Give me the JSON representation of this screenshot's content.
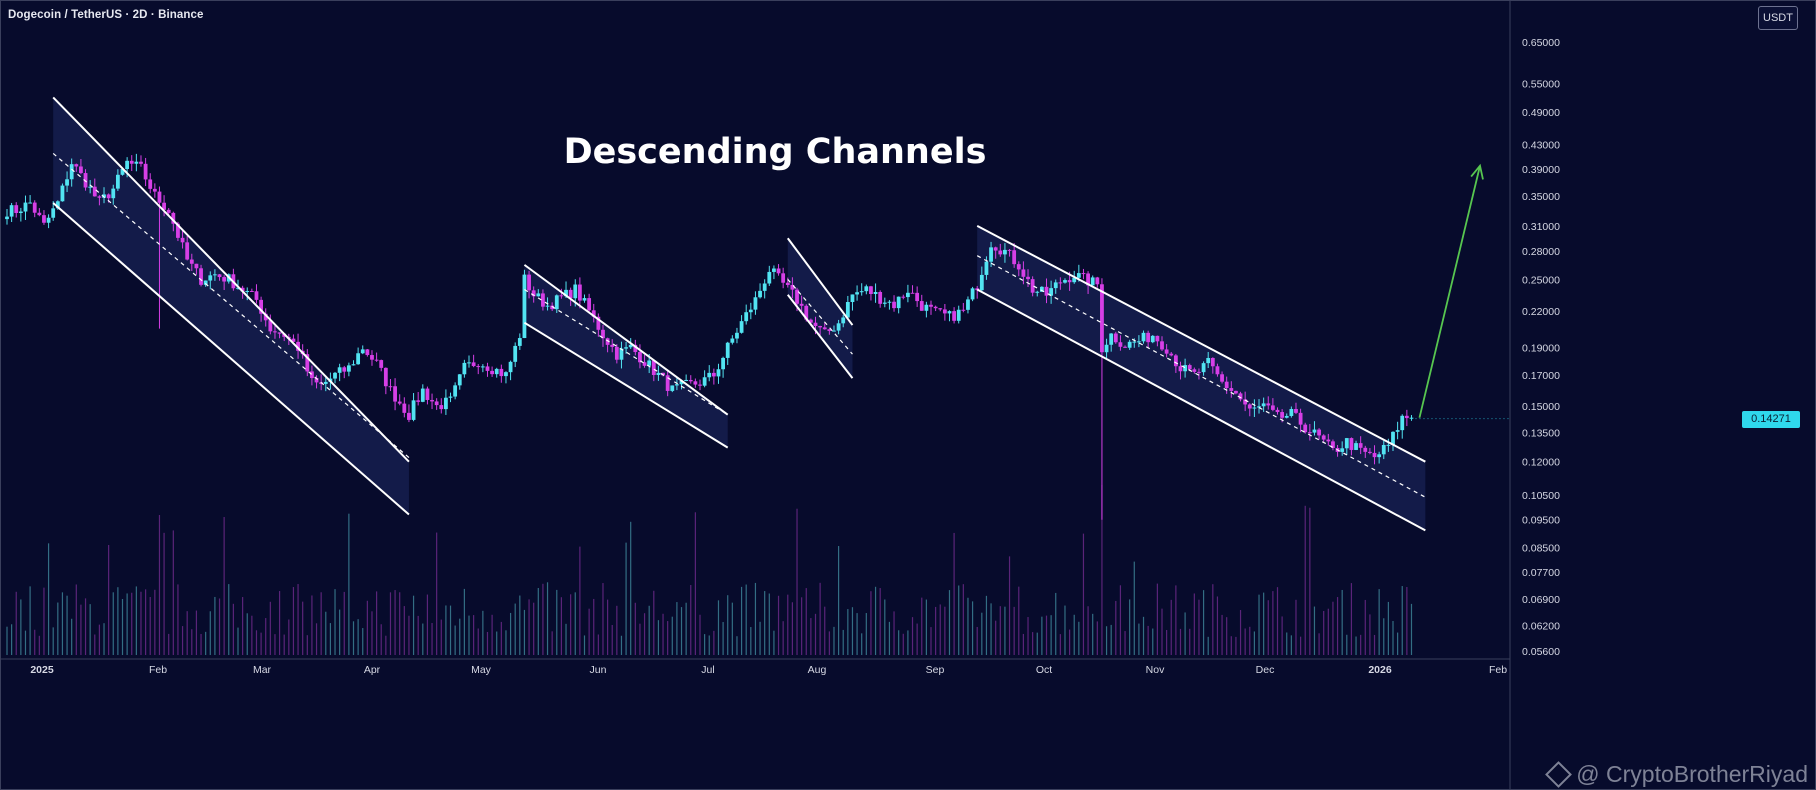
{
  "header": {
    "symbol": "Dogecoin / TetherUS · 2D · Binance"
  },
  "currency_button": "USDT",
  "watermark": {
    "text": "@ CryptoBrotherRiyad"
  },
  "colors": {
    "background": "#070b2c",
    "bull": "#52e4f2",
    "bear": "#d63fe6",
    "channel": "#ffffff",
    "arrow": "#57c650",
    "price_tag": "#2fd8ec"
  },
  "chart_data": {
    "type": "candlestick",
    "title": "Descending Channels",
    "symbol": "DOGE/USDT",
    "timeframe": "2D",
    "exchange": "Binance",
    "y_scale": "log",
    "ylim": [
      0.054,
      0.7
    ],
    "y_ticks": [
      "0.65000",
      "0.55000",
      "0.49000",
      "0.43000",
      "0.39000",
      "0.35000",
      "0.31000",
      "0.28000",
      "0.25000",
      "0.22000",
      "0.19000",
      "0.17000",
      "0.15000",
      "0.13500",
      "0.12000",
      "0.10500",
      "0.09500",
      "0.08500",
      "0.07700",
      "0.06900",
      "0.06200",
      "0.05600"
    ],
    "x_ticks": [
      "2025",
      "Feb",
      "Mar",
      "Apr",
      "May",
      "Jun",
      "Jul",
      "Aug",
      "Sep",
      "Oct",
      "Nov",
      "Dec",
      "2026",
      "Feb"
    ],
    "last_price": "0.14271",
    "series": [
      {
        "kind": "close_path",
        "values": [
          [
            0,
            0.33
          ],
          [
            2,
            0.33
          ],
          [
            5,
            0.34
          ],
          [
            8,
            0.31
          ],
          [
            11,
            0.34
          ],
          [
            14,
            0.4
          ],
          [
            17,
            0.37
          ],
          [
            20,
            0.34
          ],
          [
            23,
            0.36
          ],
          [
            26,
            0.4
          ],
          [
            29,
            0.39
          ],
          [
            32,
            0.35
          ],
          [
            35,
            0.33
          ],
          [
            39,
            0.27
          ],
          [
            42,
            0.25
          ],
          [
            45,
            0.255
          ],
          [
            48,
            0.25
          ],
          [
            51,
            0.24
          ],
          [
            54,
            0.23
          ],
          [
            57,
            0.205
          ],
          [
            60,
            0.2
          ],
          [
            63,
            0.19
          ],
          [
            66,
            0.165
          ],
          [
            68,
            0.163
          ],
          [
            71,
            0.17
          ],
          [
            74,
            0.175
          ],
          [
            77,
            0.19
          ],
          [
            80,
            0.178
          ],
          [
            83,
            0.16
          ],
          [
            87,
            0.145
          ],
          [
            90,
            0.16
          ],
          [
            93,
            0.15
          ],
          [
            96,
            0.153
          ],
          [
            99,
            0.175
          ],
          [
            102,
            0.18
          ],
          [
            105,
            0.175
          ],
          [
            108,
            0.17
          ],
          [
            111,
            0.2
          ],
          [
            112,
            0.25
          ],
          [
            114,
            0.235
          ],
          [
            117,
            0.225
          ],
          [
            120,
            0.232
          ],
          [
            123,
            0.24
          ],
          [
            126,
            0.22
          ],
          [
            129,
            0.2
          ],
          [
            132,
            0.185
          ],
          [
            135,
            0.19
          ],
          [
            138,
            0.18
          ],
          [
            141,
            0.17
          ],
          [
            144,
            0.16
          ],
          [
            147,
            0.163
          ],
          [
            150,
            0.165
          ],
          [
            153,
            0.17
          ],
          [
            156,
            0.19
          ],
          [
            159,
            0.21
          ],
          [
            162,
            0.23
          ],
          [
            165,
            0.26
          ],
          [
            168,
            0.245
          ],
          [
            171,
            0.23
          ],
          [
            174,
            0.21
          ],
          [
            177,
            0.2
          ],
          [
            180,
            0.21
          ],
          [
            183,
            0.235
          ],
          [
            186,
            0.24
          ],
          [
            189,
            0.232
          ],
          [
            192,
            0.226
          ],
          [
            195,
            0.24
          ],
          [
            198,
            0.225
          ],
          [
            201,
            0.218
          ],
          [
            204,
            0.215
          ],
          [
            207,
            0.22
          ],
          [
            210,
            0.245
          ],
          [
            213,
            0.29
          ],
          [
            216,
            0.28
          ],
          [
            219,
            0.265
          ],
          [
            222,
            0.24
          ],
          [
            225,
            0.235
          ],
          [
            228,
            0.248
          ],
          [
            231,
            0.255
          ],
          [
            233,
            0.25
          ],
          [
            236,
            0.245
          ],
          [
            237,
            0.19
          ],
          [
            239,
            0.2
          ],
          [
            242,
            0.192
          ],
          [
            245,
            0.195
          ],
          [
            248,
            0.2
          ],
          [
            251,
            0.19
          ],
          [
            254,
            0.175
          ],
          [
            257,
            0.17
          ],
          [
            260,
            0.178
          ],
          [
            263,
            0.165
          ],
          [
            266,
            0.158
          ],
          [
            269,
            0.147
          ],
          [
            272,
            0.15
          ],
          [
            275,
            0.143
          ],
          [
            278,
            0.145
          ],
          [
            281,
            0.138
          ],
          [
            284,
            0.132
          ],
          [
            287,
            0.125
          ],
          [
            290,
            0.13
          ],
          [
            293,
            0.125
          ],
          [
            296,
            0.122
          ],
          [
            299,
            0.128
          ],
          [
            302,
            0.143
          ],
          [
            304,
            0.144
          ]
        ]
      },
      {
        "kind": "projection_arrow",
        "to_price": 0.395
      }
    ],
    "channels": [
      {
        "x1": 10,
        "x2": 87,
        "upper": [
          0.52,
          0.12
        ],
        "mid": [
          0.415,
          0.122
        ],
        "lower": [
          0.34,
          0.097
        ]
      },
      {
        "x1": 112,
        "x2": 156,
        "upper": [
          0.265,
          0.145
        ],
        "mid": [
          0.24,
          0.145
        ],
        "lower": [
          0.21,
          0.127
        ]
      },
      {
        "x1": 169,
        "x2": 183,
        "upper": [
          0.295,
          0.208
        ],
        "mid": [
          0.25,
          0.185
        ],
        "lower": [
          0.235,
          0.168
        ]
      },
      {
        "x1": 210,
        "x2": 307,
        "upper": [
          0.31,
          0.12
        ],
        "mid": [
          0.275,
          0.104
        ],
        "lower": [
          0.24,
          0.091
        ]
      }
    ]
  }
}
